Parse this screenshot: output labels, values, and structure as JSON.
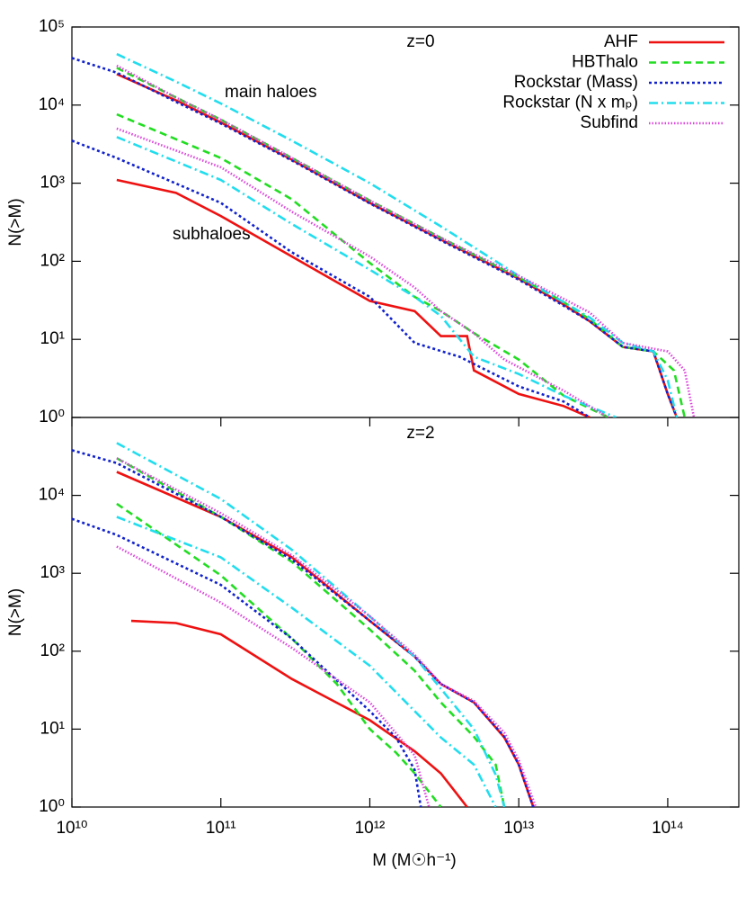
{
  "chart_data": [
    {
      "type": "line",
      "log_x": true,
      "log_y": true,
      "xlim": [
        10000000000.0,
        300000000000000.0
      ],
      "ylim": [
        1,
        100000
      ],
      "ylabel": "N(>M)",
      "yticks": [
        {
          "value": 1,
          "label": "10⁰"
        },
        {
          "value": 10,
          "label": "10¹"
        },
        {
          "value": 100,
          "label": "10²"
        },
        {
          "value": 1000,
          "label": "10³"
        },
        {
          "value": 10000,
          "label": "10⁴"
        },
        {
          "value": 100000,
          "label": "10⁵"
        }
      ],
      "annotations": [
        "z=0",
        "main haloes",
        "subhaloes"
      ],
      "legend": "top-right",
      "series": [
        {
          "name": "AHF",
          "color": "#ee1111",
          "dash": "solid",
          "lines": [
            {
              "x": [
                20000000000.0,
                50000000000.0,
                100000000000.0,
                300000000000.0,
                1000000000000.0,
                3000000000000.0,
                10000000000000.0,
                20000000000000.0,
                30000000000000.0,
                50000000000000.0,
                80000000000000.0,
                100000000000000.0,
                115000000000000.0
              ],
              "values": [
                25000,
                11500,
                6000,
                2000,
                560,
                190,
                60,
                28,
                17,
                8,
                7,
                2,
                1
              ]
            },
            {
              "x": [
                20000000000.0,
                50000000000.0,
                100000000000.0,
                300000000000.0,
                1000000000000.0,
                2000000000000.0,
                3000000000000.0,
                4500000000000.0,
                5000000000000.0,
                10000000000000.0,
                20000000000000.0,
                30000000000000.0
              ],
              "values": [
                1100,
                750,
                380,
                115,
                31,
                23,
                11,
                11,
                4,
                2,
                1.4,
                1
              ]
            }
          ]
        },
        {
          "name": "HBThalo",
          "color": "#22dd22",
          "dash": "dashed",
          "lines": [
            {
              "x": [
                20000000000.0,
                50000000000.0,
                100000000000.0,
                300000000000.0,
                1000000000000.0,
                3000000000000.0,
                10000000000000.0,
                20000000000000.0,
                30000000000000.0,
                50000000000000.0,
                80000000000000.0,
                110000000000000.0,
                130000000000000.0
              ],
              "values": [
                30000,
                12500,
                6500,
                2100,
                600,
                200,
                62,
                30,
                18,
                8,
                7,
                4,
                1
              ]
            },
            {
              "x": [
                20000000000.0,
                100000000000.0,
                300000000000.0,
                1000000000000.0,
                2000000000000.0,
                3000000000000.0,
                5000000000000.0,
                10000000000000.0,
                20000000000000.0,
                40000000000000.0
              ],
              "values": [
                7600,
                2100,
                620,
                95,
                35,
                23,
                12,
                5.5,
                1.9,
                1
              ]
            }
          ]
        },
        {
          "name": "Rockstar (Mass)",
          "color": "#1122cc",
          "dash": "dotted",
          "lines": [
            {
              "x": [
                10000000000.0,
                20000000000.0,
                50000000000.0,
                100000000000.0,
                300000000000.0,
                1000000000000.0,
                3000000000000.0,
                10000000000000.0,
                20000000000000.0,
                30000000000000.0,
                50000000000000.0,
                80000000000000.0,
                100000000000000.0,
                115000000000000.0
              ],
              "values": [
                40000,
                26000,
                11000,
                5800,
                1950,
                550,
                185,
                58,
                27,
                17,
                8,
                7,
                2,
                1
              ]
            },
            {
              "x": [
                10000000000.0,
                20000000000.0,
                100000000000.0,
                300000000000.0,
                1000000000000.0,
                2000000000000.0,
                4000000000000.0,
                10000000000000.0,
                20000000000000.0,
                30000000000000.0
              ],
              "values": [
                3500,
                2100,
                560,
                130,
                35,
                9,
                6,
                2.5,
                1.6,
                1
              ]
            }
          ]
        },
        {
          "name": "Rockstar (N x mₚ)",
          "color": "#22ddee",
          "dash": "dashdot",
          "lines": [
            {
              "x": [
                20000000000.0,
                50000000000.0,
                100000000000.0,
                300000000000.0,
                1000000000000.0,
                3000000000000.0,
                10000000000000.0,
                20000000000000.0,
                30000000000000.0,
                50000000000000.0,
                80000000000000.0,
                100000000000000.0,
                115000000000000.0
              ],
              "values": [
                45000,
                20000,
                10500,
                3500,
                1000,
                280,
                65,
                30,
                19,
                9,
                7,
                3,
                1
              ]
            },
            {
              "x": [
                20000000000.0,
                100000000000.0,
                300000000000.0,
                1000000000000.0,
                2000000000000.0,
                3000000000000.0,
                5000000000000.0,
                10000000000000.0,
                20000000000000.0,
                45000000000000.0
              ],
              "values": [
                3900,
                1100,
                300,
                78,
                35,
                20,
                6,
                3.6,
                1.9,
                1
              ]
            }
          ]
        },
        {
          "name": "Subfind",
          "color": "#dd44dd",
          "dash": "finedot",
          "lines": [
            {
              "x": [
                20000000000.0,
                50000000000.0,
                100000000000.0,
                300000000000.0,
                1000000000000.0,
                3000000000000.0,
                10000000000000.0,
                20000000000000.0,
                30000000000000.0,
                50000000000000.0,
                100000000000000.0,
                130000000000000.0,
                150000000000000.0
              ],
              "values": [
                32000,
                12500,
                6500,
                2100,
                600,
                200,
                65,
                33,
                22,
                9,
                7,
                4,
                1
              ]
            },
            {
              "x": [
                20000000000.0,
                100000000000.0,
                300000000000.0,
                1000000000000.0,
                2000000000000.0,
                3000000000000.0,
                5000000000000.0,
                8000000000000.0,
                20000000000000.0,
                40000000000000.0
              ],
              "values": [
                5000,
                1600,
                430,
                115,
                46,
                23,
                12,
                5.5,
                2.2,
                1
              ]
            }
          ]
        }
      ]
    },
    {
      "type": "line",
      "log_x": true,
      "log_y": true,
      "xlim": [
        10000000000.0,
        300000000000000.0
      ],
      "ylim": [
        1,
        100000
      ],
      "xlabel": "M (M☉h⁻¹)",
      "ylabel": "N(>M)",
      "xticks": [
        {
          "value": 10000000000.0,
          "label": "10¹⁰"
        },
        {
          "value": 100000000000.0,
          "label": "10¹¹"
        },
        {
          "value": 1000000000000.0,
          "label": "10¹²"
        },
        {
          "value": 10000000000000.0,
          "label": "10¹³"
        },
        {
          "value": 100000000000000.0,
          "label": "10¹⁴"
        }
      ],
      "yticks": [
        {
          "value": 1,
          "label": "10⁰"
        },
        {
          "value": 10,
          "label": "10¹"
        },
        {
          "value": 100,
          "label": "10²"
        },
        {
          "value": 1000,
          "label": "10³"
        },
        {
          "value": 10000,
          "label": "10⁴"
        }
      ],
      "annotations": [
        "z=2"
      ],
      "series": [
        {
          "color": "#ee1111",
          "dash": "solid",
          "lines": [
            {
              "x": [
                20000000000.0,
                100000000000.0,
                300000000000.0,
                1000000000000.0,
                2000000000000.0,
                3000000000000.0,
                5000000000000.0,
                8000000000000.0,
                10000000000000.0,
                12500000000000.0
              ],
              "values": [
                20000,
                5300,
                1600,
                245,
                85,
                38,
                22,
                7.8,
                3.5,
                1
              ]
            },
            {
              "x": [
                25000000000.0,
                50000000000.0,
                100000000000.0,
                300000000000.0,
                1000000000000.0,
                2000000000000.0,
                3000000000000.0,
                4500000000000.0
              ],
              "values": [
                245,
                230,
                165,
                44,
                13,
                5.2,
                2.7,
                1
              ]
            }
          ]
        },
        {
          "color": "#22dd22",
          "dash": "dashed",
          "lines": [
            {
              "x": [
                20000000000.0,
                100000000000.0,
                300000000000.0,
                1000000000000.0,
                2000000000000.0,
                3000000000000.0,
                5000000000000.0,
                7000000000000.0,
                8000000000000.0
              ],
              "values": [
                30000,
                5300,
                1400,
                190,
                56,
                22,
                8,
                3.5,
                1
              ]
            },
            {
              "x": [
                20000000000.0,
                100000000000.0,
                300000000000.0,
                600000000000.0,
                1000000000000.0,
                1500000000000.0,
                2000000000000.0,
                3000000000000.0
              ],
              "values": [
                7800,
                940,
                145,
                38,
                10,
                5,
                2.7,
                1
              ]
            }
          ]
        },
        {
          "color": "#1122cc",
          "dash": "dotted",
          "lines": [
            {
              "x": [
                10000000000.0,
                20000000000.0,
                100000000000.0,
                300000000000.0,
                1000000000000.0,
                2000000000000.0,
                3000000000000.0,
                5000000000000.0,
                8000000000000.0,
                10000000000000.0,
                12500000000000.0
              ],
              "values": [
                38000,
                26000,
                5300,
                1500,
                245,
                85,
                38,
                22,
                8,
                3.5,
                1
              ]
            },
            {
              "x": [
                10000000000.0,
                20000000000.0,
                100000000000.0,
                300000000000.0,
                1000000000000.0,
                1500000000000.0,
                2000000000000.0,
                2200000000000.0
              ],
              "values": [
                5000,
                3100,
                710,
                145,
                17,
                7.8,
                3,
                1
              ]
            }
          ]
        },
        {
          "color": "#22ddee",
          "dash": "dashdot",
          "lines": [
            {
              "x": [
                20000000000.0,
                100000000000.0,
                300000000000.0,
                1000000000000.0,
                2000000000000.0,
                3000000000000.0,
                5000000000000.0,
                7000000000000.0,
                8000000000000.0
              ],
              "values": [
                47000,
                9000,
                2000,
                280,
                85,
                33,
                10,
                2.6,
                1
              ]
            },
            {
              "x": [
                20000000000.0,
                100000000000.0,
                300000000000.0,
                1000000000000.0,
                2000000000000.0,
                3000000000000.0,
                5000000000000.0,
                7000000000000.0
              ],
              "values": [
                5300,
                1600,
                360,
                65,
                17,
                7.8,
                3.5,
                1
              ]
            }
          ]
        },
        {
          "color": "#dd44dd",
          "dash": "finedot",
          "lines": [
            {
              "x": [
                20000000000.0,
                100000000000.0,
                300000000000.0,
                1000000000000.0,
                2000000000000.0,
                3000000000000.0,
                5000000000000.0,
                8000000000000.0,
                10000000000000.0,
                13000000000000.0
              ],
              "values": [
                30000,
                5900,
                1700,
                280,
                90,
                38,
                23,
                9,
                4,
                1
              ]
            },
            {
              "x": [
                20000000000.0,
                100000000000.0,
                300000000000.0,
                1000000000000.0,
                2000000000000.0,
                2500000000000.0
              ],
              "values": [
                2200,
                420,
                110,
                22,
                4.6,
                1
              ]
            }
          ]
        }
      ]
    }
  ]
}
